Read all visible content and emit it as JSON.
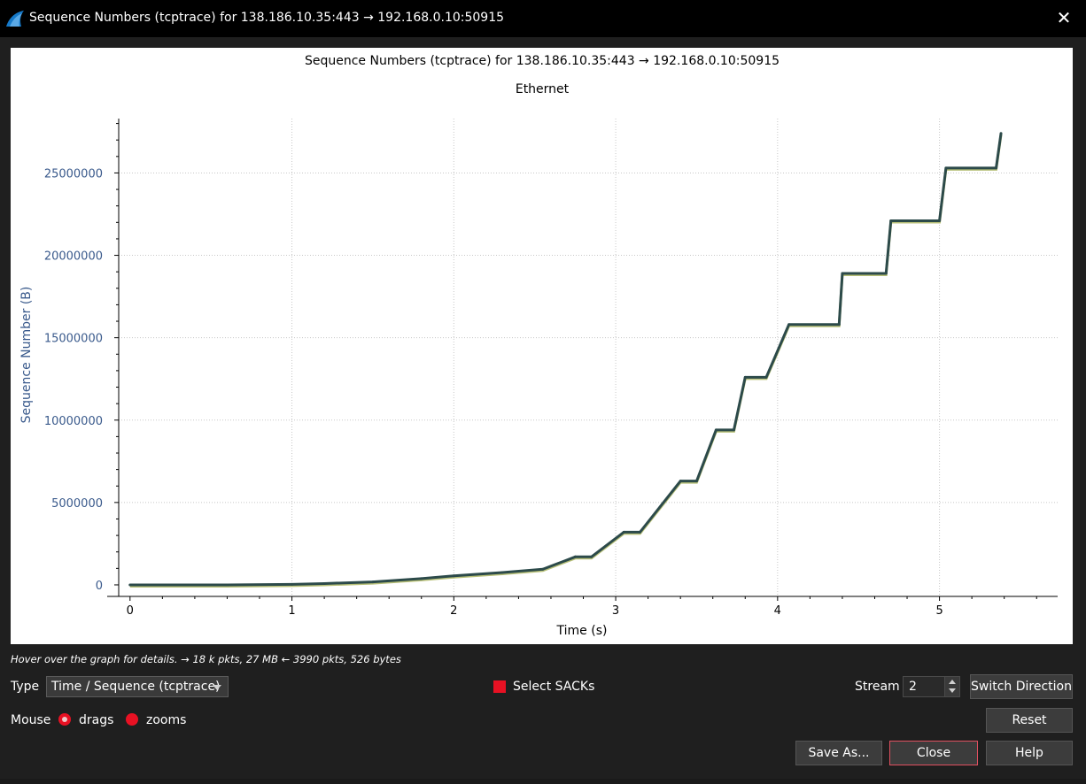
{
  "window": {
    "title": "Sequence Numbers (tcptrace) for 138.186.10.35:443 → 192.168.0.10:50915",
    "icon": "wireshark-fin-icon",
    "close_icon": "close-icon"
  },
  "chart_data": {
    "type": "line",
    "title": "Sequence Numbers (tcptrace) for 138.186.10.35:443 → 192.168.0.10:50915",
    "subtitle": "Ethernet",
    "xlabel": "Time (s)",
    "ylabel": "Sequence Number (B)",
    "xlim": [
      -0.07,
      5.73
    ],
    "ylim": [
      -700000,
      28300000
    ],
    "x_ticks": [
      "0",
      "1",
      "2",
      "3",
      "4",
      "5"
    ],
    "y_ticks": [
      "0",
      "5000000",
      "10000000",
      "15000000",
      "20000000",
      "25000000"
    ],
    "grid": true,
    "series": [
      {
        "x": [
          0,
          0.6,
          1.0,
          1.2,
          1.5,
          1.8,
          2.0,
          2.3,
          2.55,
          2.75,
          2.85,
          3.05,
          3.15,
          3.4,
          3.5,
          3.62,
          3.73,
          3.8,
          3.93,
          4.07,
          4.38,
          4.4,
          4.67,
          4.7,
          5.0,
          5.04,
          5.35,
          5.38
        ],
        "y": [
          0,
          0,
          30000,
          80000,
          180000,
          380000,
          550000,
          750000,
          950000,
          1700000,
          1700000,
          3200000,
          3200000,
          6300000,
          6300000,
          9400000,
          9400000,
          12600000,
          12600000,
          15800000,
          15800000,
          18900000,
          18900000,
          22100000,
          22100000,
          25300000,
          25300000,
          27400000
        ]
      }
    ]
  },
  "status": {
    "hint": "Hover over the graph for details. → 18 k pkts, 27 MB ← 3990 pkts, 526 bytes"
  },
  "controls": {
    "type_label": "Type",
    "type_value": "Time / Sequence (tcptrace)",
    "select_sacks_label": "Select SACKs",
    "stream_label": "Stream",
    "stream_value": "2",
    "switch_direction_label": "Switch Direction",
    "mouse_label": "Mouse",
    "drags_label": "drags",
    "zooms_label": "zooms",
    "reset_label": "Reset",
    "save_as_label": "Save As...",
    "close_label": "Close",
    "help_label": "Help"
  },
  "colors": {
    "accent": "#e81123",
    "series_line": "#2c4a4a",
    "ack_line": "#b8c078",
    "axis_label": "#3a5a8c"
  }
}
